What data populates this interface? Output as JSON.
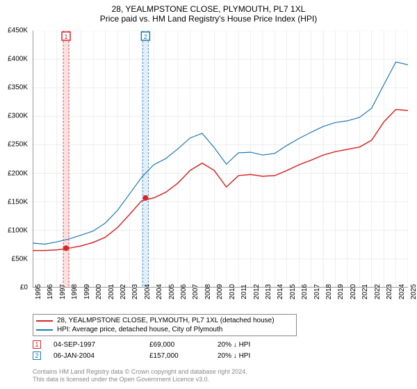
{
  "title": "28, YEALMPSTONE CLOSE, PLYMOUTH, PL7 1XL",
  "subtitle": "Price paid vs. HM Land Registry's House Price Index (HPI)",
  "chart": {
    "type": "line",
    "ylim": [
      0,
      450000
    ],
    "ytick_step": 50000,
    "y_prefix": "£",
    "y_suffix": "K",
    "x_years": [
      1995,
      1996,
      1997,
      1998,
      1999,
      2000,
      2001,
      2002,
      2003,
      2004,
      2004,
      2005,
      2006,
      2007,
      2008,
      2009,
      2010,
      2011,
      2012,
      2013,
      2014,
      2015,
      2016,
      2017,
      2018,
      2019,
      2020,
      2021,
      2022,
      2023,
      2024,
      2025
    ],
    "plot_bg": "#ffffff",
    "grid_color": "#dddddd",
    "axis_color": "#333333",
    "font_size_axis": 10,
    "series": {
      "price_paid": {
        "label": "28, YEALMPSTONE CLOSE, PLYMOUTH, PL7 1XL (detached house)",
        "color": "#d62728",
        "line_width": 1.5,
        "values": [
          65000,
          65000,
          66000,
          69000,
          73000,
          79000,
          88000,
          105000,
          128000,
          152000,
          157000,
          167000,
          183000,
          205000,
          218000,
          205000,
          176000,
          196000,
          198000,
          195000,
          196000,
          205000,
          215000,
          223000,
          232000,
          238000,
          242000,
          246000,
          258000,
          290000,
          312000,
          310000
        ]
      },
      "hpi": {
        "label": "HPI: Average price, detached house, City of Plymouth",
        "color": "#1f77b4",
        "line_width": 1.2,
        "values": [
          78000,
          76000,
          80000,
          85000,
          92000,
          99000,
          113000,
          135000,
          164000,
          193000,
          215000,
          226000,
          243000,
          262000,
          270000,
          245000,
          216000,
          236000,
          237000,
          232000,
          235000,
          249000,
          261000,
          272000,
          282000,
          289000,
          292000,
          298000,
          314000,
          355000,
          395000,
          390000
        ]
      }
    },
    "sale_bars": [
      {
        "index": 1,
        "year": 1997.67,
        "color": "#d62728",
        "fill": "#ffcccc"
      },
      {
        "index": 2,
        "year": 2004.02,
        "color": "#1f77b4",
        "fill": "#cce5f9"
      }
    ],
    "sale_markers": [
      {
        "index": 1,
        "year": 1997.67,
        "value": 69000,
        "color": "#d62728"
      },
      {
        "index": 2,
        "year": 2004.02,
        "value": 157000,
        "color": "#d62728"
      }
    ]
  },
  "legend": {
    "items": [
      {
        "color": "#d62728",
        "label_ref": "chart.series.price_paid.label"
      },
      {
        "color": "#1f77b4",
        "label_ref": "chart.series.hpi.label"
      }
    ]
  },
  "data_rows": [
    {
      "marker_num": "1",
      "marker_color": "#d62728",
      "date": "04-SEP-1997",
      "price": "£69,000",
      "pct": "20%",
      "arrow": "↓",
      "vs": "HPI"
    },
    {
      "marker_num": "2",
      "marker_color": "#1f77b4",
      "date": "06-JAN-2004",
      "price": "£157,000",
      "pct": "20%",
      "arrow": "↓",
      "vs": "HPI"
    }
  ],
  "footer": {
    "line1": "Contains HM Land Registry data © Crown copyright and database right 2024.",
    "line2": "This data is licensed under the Open Government Licence v3.0."
  }
}
